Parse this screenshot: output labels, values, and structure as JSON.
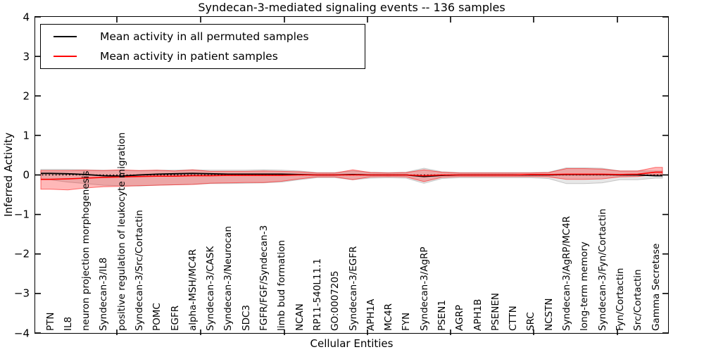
{
  "figure": {
    "title": "Syndecan-3-mediated signaling events -- 136 samples",
    "xlabel": "Cellular Entities",
    "ylabel": "Inferred Activity",
    "background": "#ffffff"
  },
  "legend": {
    "position": "upper left",
    "entries": [
      {
        "label": "Mean activity in all permuted samples",
        "color": "#000000"
      },
      {
        "label": "Mean activity in patient samples",
        "color": "#ff0000"
      }
    ]
  },
  "chart_data": {
    "type": "line",
    "title": "Syndecan-3-mediated signaling events -- 136 samples",
    "xlabel": "Cellular Entities",
    "ylabel": "Inferred Activity",
    "ylim": [
      -4,
      4
    ],
    "yticks": [
      -4,
      -3,
      -2,
      -1,
      0,
      1,
      2,
      3,
      4
    ],
    "grid": false,
    "zero_line_style": "black dotted",
    "legend_position": "upper left",
    "categories": [
      "PTN",
      "IL8",
      "neuron projection morphogenesis",
      "Syndecan-3/IL8",
      "positive regulation of leukocyte migration",
      "Syndecan-3/Src/Cortactin",
      "POMC",
      "EGFR",
      "alpha-MSH/MC4R",
      "Syndecan-3/CASK",
      "Syndecan-3/Neurocan",
      "SDC3",
      "FGFR/FGF/Syndecan-3",
      "limb bud formation",
      "NCAN",
      "RP11-540L11.1",
      "GO:0007205",
      "Syndecan-3/EGFR",
      "APH1A",
      "MC4R",
      "FYN",
      "Syndecan-3/AgRP",
      "PSEN1",
      "AGRP",
      "APH1B",
      "PSENEN",
      "CTTN",
      "SRC",
      "NCSTN",
      "Syndecan-3/AgRP/MC4R",
      "long-term memory",
      "Syndecan-3/Fyn/Cortactin",
      "Fyn/Cortactin",
      "Src/Cortactin",
      "Gamma Secretase"
    ],
    "series": [
      {
        "name": "Mean activity in all permuted samples",
        "color": "#000000",
        "band_color": "#909090",
        "band_opacity": 0.22,
        "values": [
          0.04,
          0.03,
          0.01,
          -0.02,
          -0.03,
          0.0,
          0.02,
          0.03,
          0.04,
          0.03,
          0.02,
          0.02,
          0.02,
          0.02,
          0.01,
          0.0,
          0.0,
          0.01,
          0.0,
          0.0,
          0.0,
          -0.04,
          -0.01,
          0.0,
          0.0,
          0.0,
          0.0,
          0.0,
          0.0,
          0.01,
          0.01,
          0.01,
          0.0,
          0.0,
          -0.02
        ],
        "band_upper": [
          0.14,
          0.14,
          0.13,
          0.12,
          0.12,
          0.11,
          0.12,
          0.12,
          0.13,
          0.12,
          0.12,
          0.12,
          0.13,
          0.12,
          0.1,
          0.06,
          0.06,
          0.1,
          0.07,
          0.06,
          0.07,
          0.17,
          0.08,
          0.06,
          0.06,
          0.06,
          0.06,
          0.06,
          0.07,
          0.18,
          0.18,
          0.17,
          0.1,
          0.1,
          0.1
        ],
        "band_lower": [
          -0.12,
          -0.18,
          -0.22,
          -0.26,
          -0.27,
          -0.28,
          -0.26,
          -0.25,
          -0.24,
          -0.22,
          -0.22,
          -0.21,
          -0.2,
          -0.18,
          -0.12,
          -0.07,
          -0.07,
          -0.12,
          -0.08,
          -0.07,
          -0.08,
          -0.21,
          -0.09,
          -0.07,
          -0.07,
          -0.07,
          -0.07,
          -0.07,
          -0.09,
          -0.22,
          -0.22,
          -0.2,
          -0.12,
          -0.12,
          -0.08
        ]
      },
      {
        "name": "Mean activity in patient samples",
        "color": "#ff0000",
        "band_color": "#ff0000",
        "band_opacity": 0.28,
        "values": [
          -0.11,
          -0.1,
          -0.08,
          -0.06,
          -0.05,
          -0.04,
          -0.03,
          -0.03,
          -0.02,
          -0.02,
          -0.01,
          -0.01,
          -0.01,
          -0.01,
          0.0,
          0.0,
          0.0,
          0.0,
          0.0,
          0.0,
          0.0,
          -0.02,
          0.0,
          0.0,
          0.0,
          0.0,
          0.0,
          0.01,
          0.01,
          0.02,
          0.02,
          0.02,
          0.01,
          0.02,
          0.07
        ],
        "band_upper": [
          0.11,
          0.11,
          0.12,
          0.11,
          0.13,
          0.11,
          0.12,
          0.1,
          0.13,
          0.09,
          0.09,
          0.09,
          0.1,
          0.09,
          0.08,
          0.05,
          0.05,
          0.13,
          0.06,
          0.05,
          0.06,
          0.13,
          0.07,
          0.05,
          0.05,
          0.05,
          0.05,
          0.05,
          0.06,
          0.16,
          0.16,
          0.15,
          0.1,
          0.1,
          0.19
        ],
        "band_lower": [
          -0.36,
          -0.38,
          -0.33,
          -0.3,
          -0.29,
          -0.27,
          -0.26,
          -0.25,
          -0.24,
          -0.21,
          -0.2,
          -0.19,
          -0.19,
          -0.16,
          -0.1,
          -0.05,
          -0.05,
          -0.12,
          -0.05,
          -0.04,
          -0.05,
          -0.17,
          -0.06,
          -0.04,
          -0.04,
          -0.04,
          -0.04,
          -0.04,
          -0.05,
          -0.11,
          -0.11,
          -0.1,
          -0.05,
          -0.04,
          0.01
        ]
      }
    ]
  }
}
